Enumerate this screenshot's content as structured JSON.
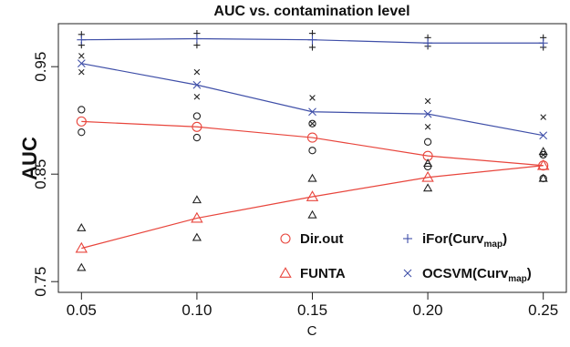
{
  "chart_data": {
    "type": "line",
    "title": "AUC vs. contamination level",
    "xlabel": "C",
    "ylabel": "AUC",
    "x": [
      0.05,
      0.1,
      0.15,
      0.2,
      0.25
    ],
    "x_tick_labels": [
      "0.05",
      "0.10",
      "0.15",
      "0.20",
      "0.25"
    ],
    "y_ticks": [
      0.75,
      0.85,
      0.95
    ],
    "y_tick_labels": [
      "0.75",
      "0.85",
      "0.95"
    ],
    "xlim": [
      0.04,
      0.26
    ],
    "ylim": [
      0.74,
      0.99
    ],
    "legend_position": "bottom-right",
    "series": [
      {
        "name": "Dir.out",
        "name_main": "Dir.out",
        "name_sub": "",
        "name_suffix": "",
        "marker": "circle",
        "color": "#e8453c",
        "values": [
          0.899,
          0.894,
          0.884,
          0.867,
          0.858
        ],
        "replicates": [
          [
            0.91,
            0.889
          ],
          [
            0.904,
            0.884
          ],
          [
            0.897,
            0.872
          ],
          [
            0.88,
            0.857
          ],
          [
            0.868,
            0.846
          ]
        ]
      },
      {
        "name": "FUNTA",
        "name_main": "FUNTA",
        "name_sub": "",
        "name_suffix": "",
        "marker": "triangle",
        "color": "#e8453c",
        "values": [
          0.781,
          0.809,
          0.829,
          0.847,
          0.858
        ],
        "replicates": [
          [
            0.8,
            0.763
          ],
          [
            0.826,
            0.791
          ],
          [
            0.846,
            0.812
          ],
          [
            0.86,
            0.837
          ],
          [
            0.871,
            0.846
          ]
        ]
      },
      {
        "name": "iFor(Curv_map)",
        "name_main": "iFor(Curv",
        "name_sub": "map",
        "name_suffix": ")",
        "marker": "plus",
        "color": "#3f4fa8",
        "values": [
          0.975,
          0.976,
          0.975,
          0.972,
          0.972
        ],
        "replicates": [
          [
            0.98,
            0.97
          ],
          [
            0.981,
            0.97
          ],
          [
            0.981,
            0.968
          ],
          [
            0.977,
            0.969
          ],
          [
            0.977,
            0.968
          ]
        ]
      },
      {
        "name": "OCSVM(Curv_map)",
        "name_main": "OCSVM(Curv",
        "name_sub": "map",
        "name_suffix": ")",
        "marker": "cross",
        "color": "#3f4fa8",
        "values": [
          0.953,
          0.933,
          0.908,
          0.906,
          0.886
        ],
        "replicates": [
          [
            0.96,
            0.945
          ],
          [
            0.945,
            0.922
          ],
          [
            0.921,
            0.897
          ],
          [
            0.918,
            0.894
          ],
          [
            0.903,
            0.868
          ]
        ]
      }
    ]
  }
}
